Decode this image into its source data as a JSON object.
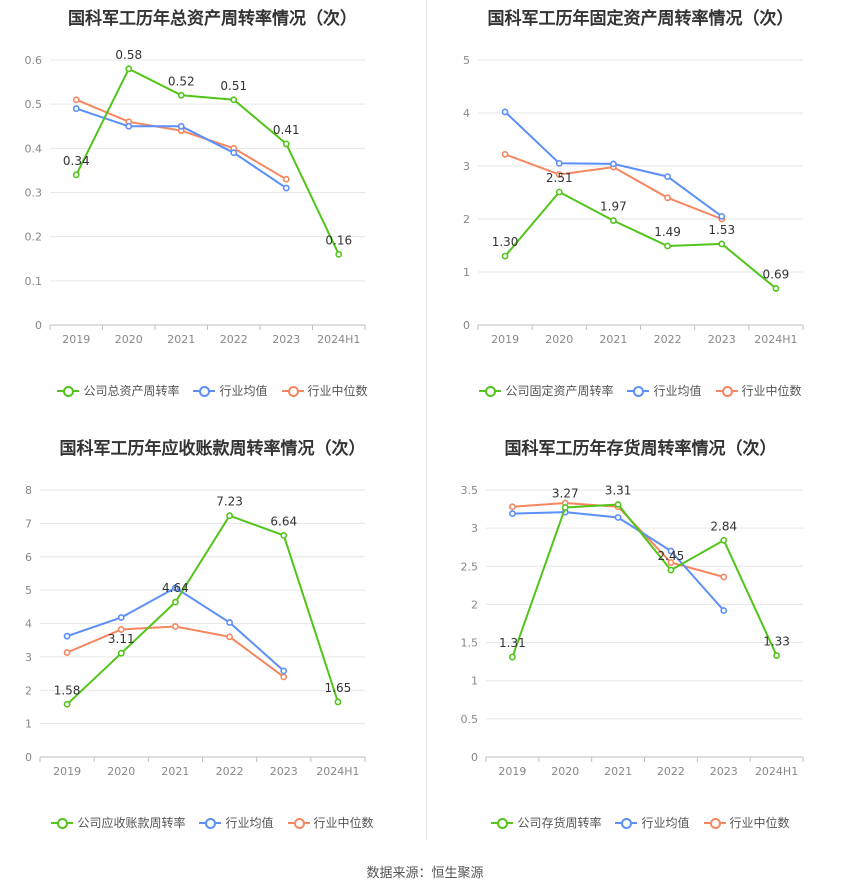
{
  "footer": "数据来源：恒生聚源",
  "colors": {
    "company": "#52c41a",
    "avg": "#5b8ff9",
    "median": "#f4875f"
  },
  "chart_data": [
    {
      "type": "line",
      "title": "国科军工历年总资产周转率情况（次）",
      "categories": [
        "2019",
        "2020",
        "2021",
        "2022",
        "2023",
        "2024H1"
      ],
      "ylim": [
        0,
        0.6
      ],
      "yticks": [
        "0",
        "0.1",
        "0.2",
        "0.3",
        "0.4",
        "0.5",
        "0.6"
      ],
      "series": [
        {
          "name": "公司总资产周转率",
          "role": "company",
          "values": [
            0.34,
            0.58,
            0.52,
            0.51,
            0.41,
            0.16
          ],
          "labels": [
            "0.34",
            "0.58",
            "0.52",
            "0.51",
            "0.41",
            "0.16"
          ]
        },
        {
          "name": "行业均值",
          "role": "avg",
          "values": [
            0.49,
            0.45,
            0.45,
            0.39,
            0.31,
            null
          ]
        },
        {
          "name": "行业中位数",
          "role": "median",
          "values": [
            0.51,
            0.46,
            0.44,
            0.4,
            0.33,
            null
          ]
        }
      ]
    },
    {
      "type": "line",
      "title": "国科军工历年固定资产周转率情况（次）",
      "categories": [
        "2019",
        "2020",
        "2021",
        "2022",
        "2023",
        "2024H1"
      ],
      "ylim": [
        0,
        5
      ],
      "yticks": [
        "0",
        "1",
        "2",
        "3",
        "4",
        "5"
      ],
      "series": [
        {
          "name": "公司固定资产周转率",
          "role": "company",
          "values": [
            1.3,
            2.51,
            1.97,
            1.49,
            1.53,
            0.69
          ],
          "labels": [
            "1.30",
            "2.51",
            "1.97",
            "1.49",
            "1.53",
            "0.69"
          ]
        },
        {
          "name": "行业均值",
          "role": "avg",
          "values": [
            4.02,
            3.05,
            3.04,
            2.8,
            2.05,
            null
          ]
        },
        {
          "name": "行业中位数",
          "role": "median",
          "values": [
            3.22,
            2.84,
            2.98,
            2.4,
            2.0,
            null
          ]
        }
      ]
    },
    {
      "type": "line",
      "title": "国科军工历年应收账款周转率情况（次）",
      "categories": [
        "2019",
        "2020",
        "2021",
        "2022",
        "2023",
        "2024H1"
      ],
      "ylim": [
        0,
        8
      ],
      "yticks": [
        "0",
        "1",
        "2",
        "3",
        "4",
        "5",
        "6",
        "7",
        "8"
      ],
      "series": [
        {
          "name": "公司应收账款周转率",
          "role": "company",
          "values": [
            1.58,
            3.11,
            4.64,
            7.23,
            6.64,
            1.65
          ],
          "labels": [
            "1.58",
            "3.11",
            "4.64",
            "7.23",
            "6.64",
            "1.65"
          ]
        },
        {
          "name": "行业均值",
          "role": "avg",
          "values": [
            3.62,
            4.18,
            5.07,
            4.03,
            2.58,
            null
          ]
        },
        {
          "name": "行业中位数",
          "role": "median",
          "values": [
            3.13,
            3.82,
            3.91,
            3.6,
            2.4,
            null
          ]
        }
      ]
    },
    {
      "type": "line",
      "title": "国科军工历年存货周转率情况（次）",
      "categories": [
        "2019",
        "2020",
        "2021",
        "2022",
        "2023",
        "2024H1"
      ],
      "ylim": [
        0,
        3.5
      ],
      "yticks": [
        "0",
        "0.5",
        "1",
        "1.5",
        "2",
        "2.5",
        "3",
        "3.5"
      ],
      "series": [
        {
          "name": "公司存货周转率",
          "role": "company",
          "values": [
            1.31,
            3.27,
            3.31,
            2.45,
            2.84,
            1.33
          ],
          "labels": [
            "1.31",
            "3.27",
            "3.31",
            "2.45",
            "2.84",
            "1.33"
          ]
        },
        {
          "name": "行业均值",
          "role": "avg",
          "values": [
            3.19,
            3.21,
            3.14,
            2.7,
            1.92,
            null
          ]
        },
        {
          "name": "行业中位数",
          "role": "median",
          "values": [
            3.28,
            3.33,
            3.28,
            2.55,
            2.36,
            null
          ]
        }
      ]
    }
  ]
}
